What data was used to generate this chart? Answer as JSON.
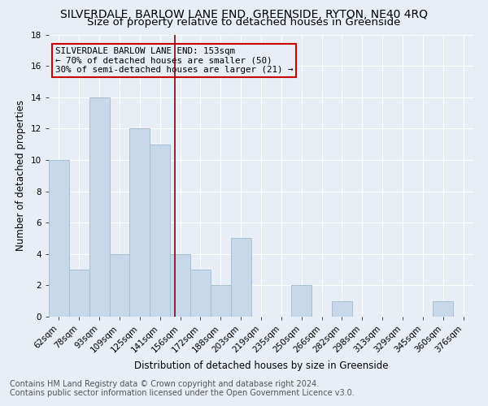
{
  "title": "SILVERDALE, BARLOW LANE END, GREENSIDE, RYTON, NE40 4RQ",
  "subtitle": "Size of property relative to detached houses in Greenside",
  "xlabel": "Distribution of detached houses by size in Greenside",
  "ylabel": "Number of detached properties",
  "footnote_line1": "Contains HM Land Registry data © Crown copyright and database right 2024.",
  "footnote_line2": "Contains public sector information licensed under the Open Government Licence v3.0.",
  "bar_labels": [
    "62sqm",
    "78sqm",
    "93sqm",
    "109sqm",
    "125sqm",
    "141sqm",
    "156sqm",
    "172sqm",
    "188sqm",
    "203sqm",
    "219sqm",
    "235sqm",
    "250sqm",
    "266sqm",
    "282sqm",
    "298sqm",
    "313sqm",
    "329sqm",
    "345sqm",
    "360sqm",
    "376sqm"
  ],
  "bar_values": [
    10,
    3,
    14,
    4,
    12,
    11,
    4,
    3,
    2,
    5,
    0,
    0,
    2,
    0,
    1,
    0,
    0,
    0,
    0,
    1,
    0
  ],
  "bar_color": "#c8d8eb",
  "bar_edgecolor": "#a8bfd0",
  "vline_x_index": 5.72,
  "vline_color": "#8b0000",
  "annotation_line1": "SILVERDALE BARLOW LANE END: 153sqm",
  "annotation_line2": "← 70% of detached houses are smaller (50)",
  "annotation_line3": "30% of semi-detached houses are larger (21) →",
  "annotation_box_edgecolor": "#cc0000",
  "ylim": [
    0,
    18
  ],
  "yticks": [
    0,
    2,
    4,
    6,
    8,
    10,
    12,
    14,
    16,
    18
  ],
  "background_color": "#e8eef5",
  "grid_color": "#ffffff",
  "title_fontsize": 10,
  "subtitle_fontsize": 9.5,
  "ylabel_fontsize": 8.5,
  "xlabel_fontsize": 8.5,
  "tick_fontsize": 7.5,
  "annotation_fontsize": 7.8,
  "footnote_fontsize": 7.0
}
